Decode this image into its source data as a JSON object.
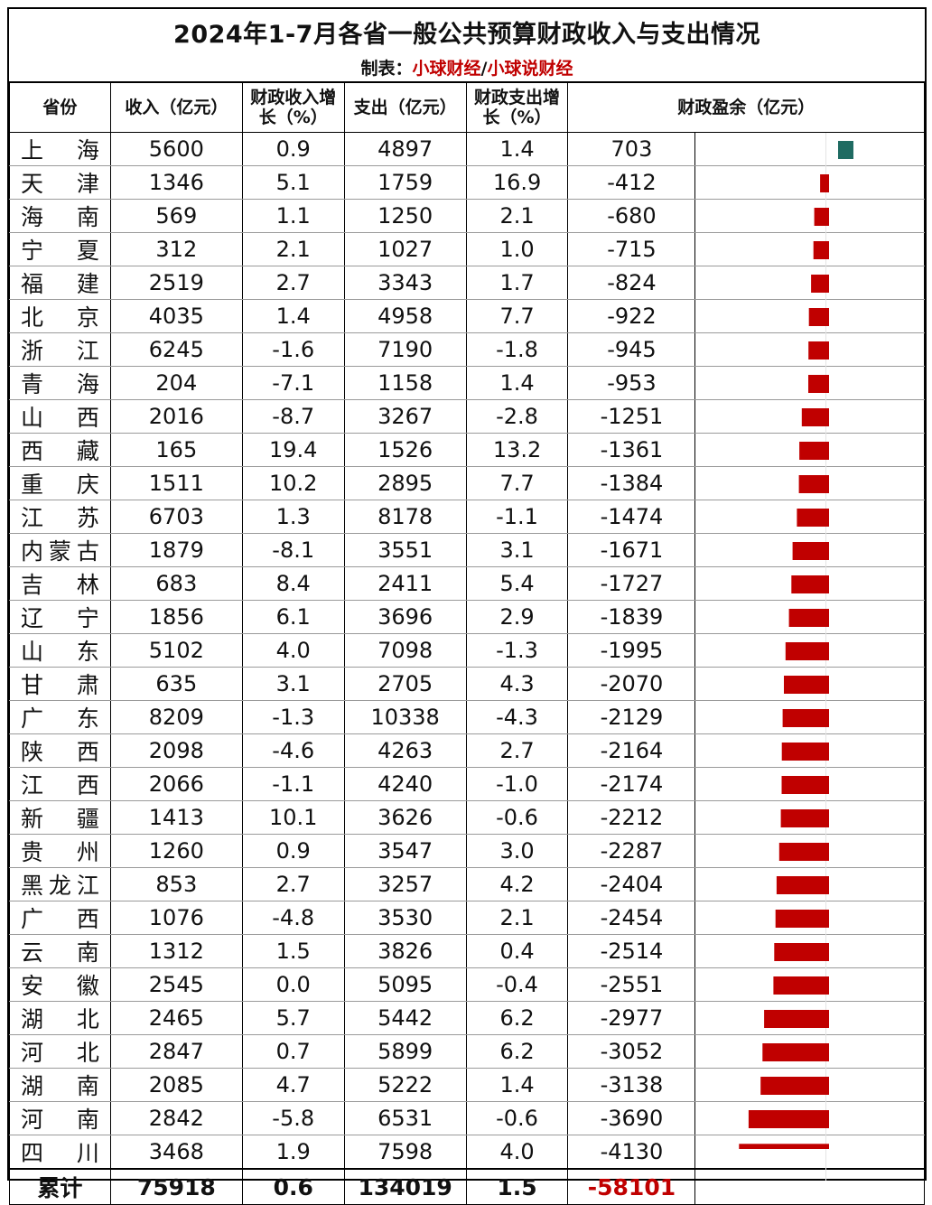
{
  "title": "2024年1-7月各省一般公共预算财政收入与支出情况",
  "credit_label": "制表：",
  "credit_source_1": "小球财经",
  "credit_sep": "/",
  "credit_source_2": "小球说财经",
  "headers": {
    "province": "省份",
    "revenue": "收入（亿元）",
    "revenue_growth": "财政收入增长（%）",
    "expenditure": "支出（亿元）",
    "expenditure_growth": "财政支出增长（%）",
    "surplus": "财政盈余（亿元）"
  },
  "rows": [
    {
      "province": "上海",
      "revenue": "5600",
      "revenue_growth": "0.9",
      "expenditure": "4897",
      "expenditure_growth": "1.4",
      "surplus": "703"
    },
    {
      "province": "天津",
      "revenue": "1346",
      "revenue_growth": "5.1",
      "expenditure": "1759",
      "expenditure_growth": "16.9",
      "surplus": "-412"
    },
    {
      "province": "海南",
      "revenue": "569",
      "revenue_growth": "1.1",
      "expenditure": "1250",
      "expenditure_growth": "2.1",
      "surplus": "-680"
    },
    {
      "province": "宁夏",
      "revenue": "312",
      "revenue_growth": "2.1",
      "expenditure": "1027",
      "expenditure_growth": "1.0",
      "surplus": "-715"
    },
    {
      "province": "福建",
      "revenue": "2519",
      "revenue_growth": "2.7",
      "expenditure": "3343",
      "expenditure_growth": "1.7",
      "surplus": "-824"
    },
    {
      "province": "北京",
      "revenue": "4035",
      "revenue_growth": "1.4",
      "expenditure": "4958",
      "expenditure_growth": "7.7",
      "surplus": "-922"
    },
    {
      "province": "浙江",
      "revenue": "6245",
      "revenue_growth": "-1.6",
      "expenditure": "7190",
      "expenditure_growth": "-1.8",
      "surplus": "-945"
    },
    {
      "province": "青海",
      "revenue": "204",
      "revenue_growth": "-7.1",
      "expenditure": "1158",
      "expenditure_growth": "1.4",
      "surplus": "-953"
    },
    {
      "province": "山西",
      "revenue": "2016",
      "revenue_growth": "-8.7",
      "expenditure": "3267",
      "expenditure_growth": "-2.8",
      "surplus": "-1251"
    },
    {
      "province": "西藏",
      "revenue": "165",
      "revenue_growth": "19.4",
      "expenditure": "1526",
      "expenditure_growth": "13.2",
      "surplus": "-1361"
    },
    {
      "province": "重庆",
      "revenue": "1511",
      "revenue_growth": "10.2",
      "expenditure": "2895",
      "expenditure_growth": "7.7",
      "surplus": "-1384"
    },
    {
      "province": "江苏",
      "revenue": "6703",
      "revenue_growth": "1.3",
      "expenditure": "8178",
      "expenditure_growth": "-1.1",
      "surplus": "-1474"
    },
    {
      "province": "内蒙古",
      "revenue": "1879",
      "revenue_growth": "-8.1",
      "expenditure": "3551",
      "expenditure_growth": "3.1",
      "surplus": "-1671"
    },
    {
      "province": "吉林",
      "revenue": "683",
      "revenue_growth": "8.4",
      "expenditure": "2411",
      "expenditure_growth": "5.4",
      "surplus": "-1727"
    },
    {
      "province": "辽宁",
      "revenue": "1856",
      "revenue_growth": "6.1",
      "expenditure": "3696",
      "expenditure_growth": "2.9",
      "surplus": "-1839"
    },
    {
      "province": "山东",
      "revenue": "5102",
      "revenue_growth": "4.0",
      "expenditure": "7098",
      "expenditure_growth": "-1.3",
      "surplus": "-1995"
    },
    {
      "province": "甘肃",
      "revenue": "635",
      "revenue_growth": "3.1",
      "expenditure": "2705",
      "expenditure_growth": "4.3",
      "surplus": "-2070"
    },
    {
      "province": "广东",
      "revenue": "8209",
      "revenue_growth": "-1.3",
      "expenditure": "10338",
      "expenditure_growth": "-4.3",
      "surplus": "-2129"
    },
    {
      "province": "陕西",
      "revenue": "2098",
      "revenue_growth": "-4.6",
      "expenditure": "4263",
      "expenditure_growth": "2.7",
      "surplus": "-2164"
    },
    {
      "province": "江西",
      "revenue": "2066",
      "revenue_growth": "-1.1",
      "expenditure": "4240",
      "expenditure_growth": "-1.0",
      "surplus": "-2174"
    },
    {
      "province": "新疆",
      "revenue": "1413",
      "revenue_growth": "10.1",
      "expenditure": "3626",
      "expenditure_growth": "-0.6",
      "surplus": "-2212"
    },
    {
      "province": "贵州",
      "revenue": "1260",
      "revenue_growth": "0.9",
      "expenditure": "3547",
      "expenditure_growth": "3.0",
      "surplus": "-2287"
    },
    {
      "province": "黑龙江",
      "revenue": "853",
      "revenue_growth": "2.7",
      "expenditure": "3257",
      "expenditure_growth": "4.2",
      "surplus": "-2404"
    },
    {
      "province": "广西",
      "revenue": "1076",
      "revenue_growth": "-4.8",
      "expenditure": "3530",
      "expenditure_growth": "2.1",
      "surplus": "-2454"
    },
    {
      "province": "云南",
      "revenue": "1312",
      "revenue_growth": "1.5",
      "expenditure": "3826",
      "expenditure_growth": "0.4",
      "surplus": "-2514"
    },
    {
      "province": "安徽",
      "revenue": "2545",
      "revenue_growth": "0.0",
      "expenditure": "5095",
      "expenditure_growth": "-0.4",
      "surplus": "-2551"
    },
    {
      "province": "湖北",
      "revenue": "2465",
      "revenue_growth": "5.7",
      "expenditure": "5442",
      "expenditure_growth": "6.2",
      "surplus": "-2977"
    },
    {
      "province": "河北",
      "revenue": "2847",
      "revenue_growth": "0.7",
      "expenditure": "5899",
      "expenditure_growth": "6.2",
      "surplus": "-3052"
    },
    {
      "province": "湖南",
      "revenue": "2085",
      "revenue_growth": "4.7",
      "expenditure": "5222",
      "expenditure_growth": "1.4",
      "surplus": "-3138"
    },
    {
      "province": "河南",
      "revenue": "2842",
      "revenue_growth": "-5.8",
      "expenditure": "6531",
      "expenditure_growth": "-0.6",
      "surplus": "-3690"
    },
    {
      "province": "四川",
      "revenue": "3468",
      "revenue_growth": "1.9",
      "expenditure": "7598",
      "expenditure_growth": "4.0",
      "surplus": "-4130"
    }
  ],
  "total": {
    "label": "累计",
    "revenue": "75918",
    "revenue_growth": "0.6",
    "expenditure": "134019",
    "expenditure_growth": "1.5",
    "surplus": "-58101"
  },
  "colors": {
    "positive_bar": "#1f6b62",
    "negative_bar": "#c00000",
    "accent_text": "#c00000"
  },
  "chart_data": {
    "type": "bar",
    "orientation": "horizontal",
    "title": "",
    "xlabel": "财政盈余（亿元）",
    "ylabel": "",
    "categories": [
      "上海",
      "天津",
      "海南",
      "宁夏",
      "福建",
      "北京",
      "浙江",
      "青海",
      "山西",
      "西藏",
      "重庆",
      "江苏",
      "内蒙古",
      "吉林",
      "辽宁",
      "山东",
      "甘肃",
      "广东",
      "陕西",
      "江西",
      "新疆",
      "贵州",
      "黑龙江",
      "广西",
      "云南",
      "安徽",
      "湖北",
      "河北",
      "湖南",
      "河南",
      "四川"
    ],
    "values": [
      703,
      -412,
      -680,
      -715,
      -824,
      -922,
      -945,
      -953,
      -1251,
      -1361,
      -1384,
      -1474,
      -1671,
      -1727,
      -1839,
      -1995,
      -2070,
      -2129,
      -2164,
      -2174,
      -2212,
      -2287,
      -2404,
      -2454,
      -2514,
      -2551,
      -2977,
      -3052,
      -3138,
      -3690,
      -4130
    ],
    "xlim": [
      -4130,
      703
    ],
    "grid": false,
    "legend": "none"
  }
}
